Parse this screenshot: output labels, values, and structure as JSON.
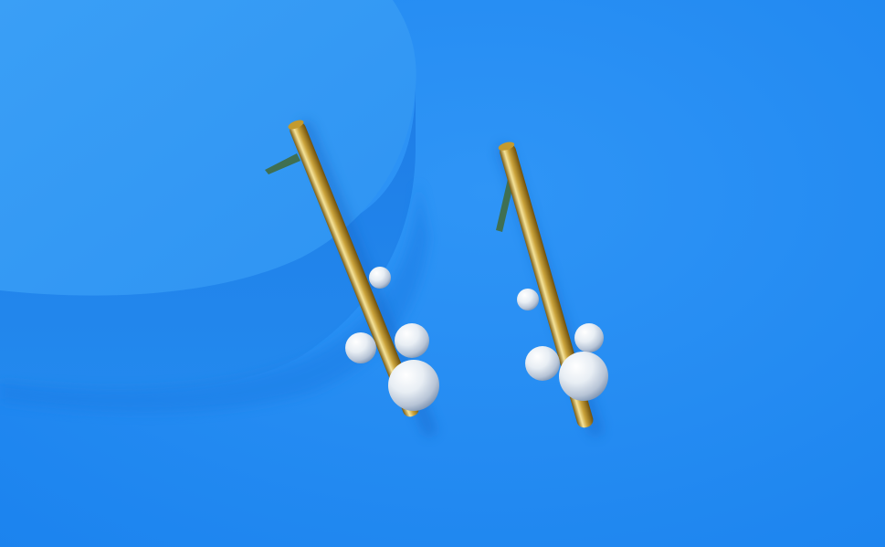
{
  "scene": {
    "subject": "pair-of-gold-bar-earrings-with-pearls",
    "colors": {
      "background": "#1a86f0",
      "background_light": "#2f95f6",
      "pedestal_top": "#3299f4",
      "pedestal_side": "#1e7fe6",
      "gold_dark": "#7a5a10",
      "gold_mid": "#c9a23a",
      "gold_light": "#f5e39a",
      "pearl_light": "#ffffff",
      "pearl_mid": "#dfe6ee",
      "pearl_shadow": "#8fa3bf",
      "post_color": "#3f6f52"
    }
  }
}
